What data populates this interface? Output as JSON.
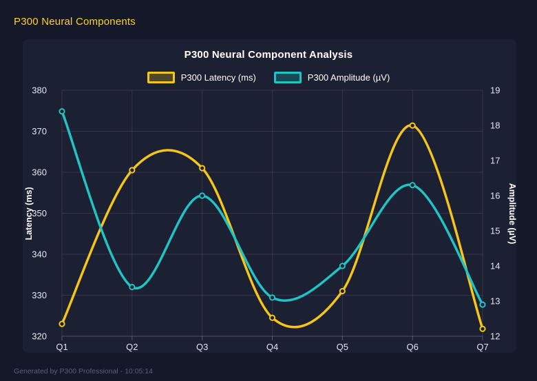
{
  "header": {
    "title": "P300 Neural Components"
  },
  "chart": {
    "title": "P300 Neural Component Analysis",
    "legend": [
      {
        "label": "P300 Latency (ms)",
        "color": "#f5c518"
      },
      {
        "label": "P300 Amplitude (µV)",
        "color": "#1fc4c4"
      }
    ]
  },
  "chart_data": {
    "type": "line",
    "categories": [
      "Q1",
      "Q2",
      "Q3",
      "Q4",
      "Q5",
      "Q6",
      "Q7"
    ],
    "series": [
      {
        "name": "P300 Latency (ms)",
        "axis": "left",
        "color": "#f5c518",
        "values": [
          323,
          360.5,
          361,
          324.5,
          331,
          371.4,
          321.8
        ]
      },
      {
        "name": "P300 Amplitude (µV)",
        "axis": "right",
        "color": "#1fc4c4",
        "values": [
          18.4,
          13.4,
          16.0,
          13.1,
          14.0,
          16.3,
          12.9
        ]
      }
    ],
    "title": "P300 Neural Component Analysis",
    "xlabel": "",
    "left_axis": {
      "label": "Latency (ms)",
      "min": 320,
      "max": 380,
      "step": 10
    },
    "right_axis": {
      "label": "Amplitude (µV)",
      "min": 12,
      "max": 19,
      "step": 1
    },
    "grid": true,
    "legend_position": "top",
    "curve": "smooth-catmull-rom",
    "colors": {
      "page_background": "#141829",
      "panel_background": "#1c2033",
      "grid_line": "rgba(255,255,255,0.10)",
      "tick_text": "#e2e5ef",
      "axis_title_text": "#ffffff",
      "header_text": "#ffd21f",
      "footer_text": "#596075"
    }
  },
  "footer": {
    "text": "Generated by P300 Professional - 10:05:14"
  }
}
